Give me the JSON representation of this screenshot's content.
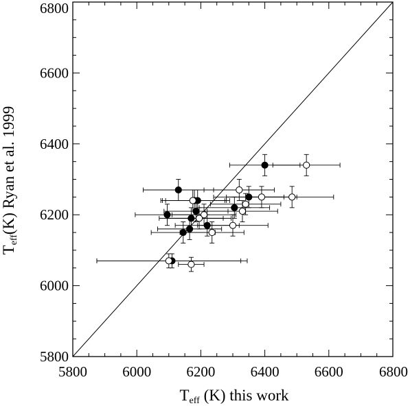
{
  "chart_data": {
    "type": "scatter",
    "title": "",
    "xlabel": {
      "base": "T",
      "sub": "eff",
      "rest": " (K) this work"
    },
    "ylabel": {
      "base": "T",
      "sub": "eff",
      "rest": "(K) Ryan et al. 1999"
    },
    "xlim": [
      5800,
      6800
    ],
    "ylim": [
      5800,
      6800
    ],
    "xticks": [
      5800,
      6000,
      6200,
      6400,
      6600,
      6800
    ],
    "yticks": [
      5800,
      6000,
      6200,
      6400,
      6600,
      6800
    ],
    "xtick_labels": [
      "5800",
      "6000",
      "6200",
      "6400",
      "6600",
      "6800"
    ],
    "ytick_labels": [
      "5800",
      "6000",
      "6200",
      "6400",
      "6600",
      "6800"
    ],
    "grid": false,
    "reference_line": "y = x",
    "series": [
      {
        "marker": "filled-circle",
        "points": [
          {
            "x": 6400,
            "y": 6340,
            "xerr": 110,
            "yerr": 30
          },
          {
            "x": 6130,
            "y": 6270,
            "xerr": 110,
            "yerr": 30
          },
          {
            "x": 6350,
            "y": 6250,
            "xerr": 110,
            "yerr": 30
          },
          {
            "x": 6180,
            "y": 6240,
            "xerr": 100,
            "yerr": 30
          },
          {
            "x": 6190,
            "y": 6240,
            "xerr": 100,
            "yerr": 30
          },
          {
            "x": 6305,
            "y": 6220,
            "xerr": 110,
            "yerr": 30
          },
          {
            "x": 6185,
            "y": 6210,
            "xerr": 100,
            "yerr": 30
          },
          {
            "x": 6095,
            "y": 6200,
            "xerr": 100,
            "yerr": 30
          },
          {
            "x": 6170,
            "y": 6190,
            "xerr": 100,
            "yerr": 30
          },
          {
            "x": 6220,
            "y": 6170,
            "xerr": 100,
            "yerr": 30
          },
          {
            "x": 6165,
            "y": 6160,
            "xerr": 100,
            "yerr": 30
          },
          {
            "x": 6145,
            "y": 6150,
            "xerr": 100,
            "yerr": 30
          },
          {
            "x": 6110,
            "y": 6070,
            "xerr": 235,
            "yerr": 20
          }
        ]
      },
      {
        "marker": "open-circle",
        "points": [
          {
            "x": 6530,
            "y": 6340,
            "xerr": 105,
            "yerr": 30
          },
          {
            "x": 6320,
            "y": 6270,
            "xerr": 110,
            "yerr": 30
          },
          {
            "x": 6390,
            "y": 6250,
            "xerr": 110,
            "yerr": 30
          },
          {
            "x": 6485,
            "y": 6250,
            "xerr": 130,
            "yerr": 30
          },
          {
            "x": 6175,
            "y": 6240,
            "xerr": 100,
            "yerr": 30
          },
          {
            "x": 6340,
            "y": 6230,
            "xerr": 110,
            "yerr": 30
          },
          {
            "x": 6330,
            "y": 6210,
            "xerr": 110,
            "yerr": 30
          },
          {
            "x": 6210,
            "y": 6200,
            "xerr": 100,
            "yerr": 30
          },
          {
            "x": 6195,
            "y": 6190,
            "xerr": 100,
            "yerr": 30
          },
          {
            "x": 6300,
            "y": 6170,
            "xerr": 110,
            "yerr": 30
          },
          {
            "x": 6235,
            "y": 6150,
            "xerr": 100,
            "yerr": 30
          },
          {
            "x": 6100,
            "y": 6070,
            "xerr": 225,
            "yerr": 20
          },
          {
            "x": 6170,
            "y": 6060,
            "xerr": 40,
            "yerr": 20
          }
        ]
      }
    ]
  }
}
